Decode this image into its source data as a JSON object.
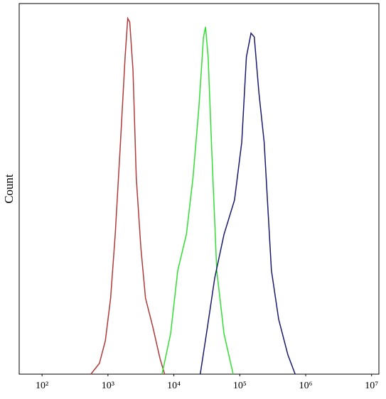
{
  "chart_data": {
    "type": "line",
    "y_label": "Count",
    "xscale": "log",
    "xlim": [
      45,
      12900000
    ],
    "ylim": [
      0,
      100
    ],
    "xticks": [
      {
        "value": 100,
        "label": "10²"
      },
      {
        "value": 1000,
        "label": "10³"
      },
      {
        "value": 10000,
        "label": "10⁴"
      },
      {
        "value": 100000,
        "label": "10⁵"
      },
      {
        "value": 1000000,
        "label": "10⁶"
      },
      {
        "value": 10000000,
        "label": "10⁷"
      }
    ],
    "series": [
      {
        "color": "#b03a3a",
        "x": [
          550,
          741,
          912,
          1096,
          1288,
          1549,
          1820,
          1995,
          2138,
          2399,
          2692,
          3162,
          3715,
          4786,
          6166,
          7244
        ],
        "values": [
          0,
          2.9,
          9,
          20.5,
          37.7,
          62.6,
          85.6,
          96,
          95,
          82,
          53,
          34,
          20.5,
          12.8,
          4.2,
          0
        ]
      },
      {
        "color": "#33dd33",
        "x": [
          6607,
          8913,
          11480,
          15490,
          19500,
          23990,
          28180,
          30200,
          33110,
          37150,
          44670,
          57540,
          79430
        ],
        "values": [
          0,
          10.9,
          28,
          37.7,
          53,
          72,
          91,
          93.7,
          85.6,
          62.6,
          28,
          10.9,
          0
        ]
      },
      {
        "color": "#1a1a6e",
        "x": [
          25120,
          32360,
          41690,
          57540,
          83180,
          107200,
          125900,
          147900,
          166000,
          195000,
          234400,
          302000,
          389000,
          537000,
          691800
        ],
        "values": [
          0,
          12.8,
          26,
          37.7,
          47,
          62.6,
          85.6,
          92,
          91,
          76,
          62.6,
          28,
          14.8,
          5.2,
          0
        ]
      }
    ]
  }
}
